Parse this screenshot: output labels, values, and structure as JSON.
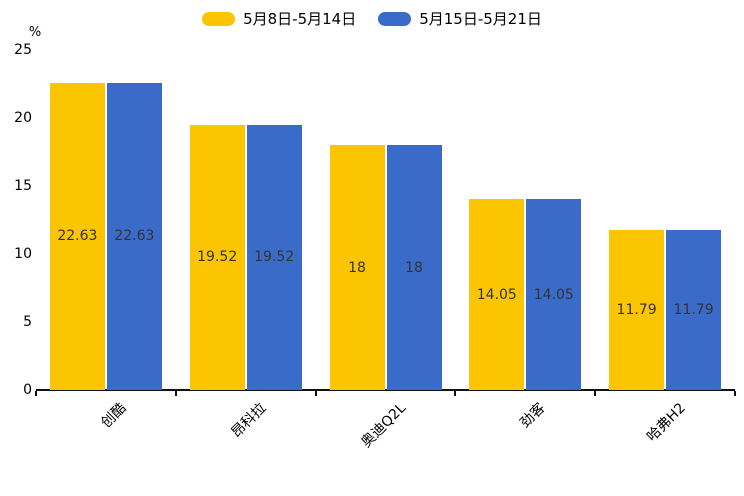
{
  "legend": {
    "items": [
      {
        "label": "5月8日-5月14日"
      },
      {
        "label": "5月15日-5月21日"
      }
    ]
  },
  "chart_data": {
    "type": "bar",
    "title": "",
    "categories": [
      "创酷",
      "昂科拉",
      "奥迪Q2L",
      "劲客",
      "哈弗H2"
    ],
    "series": [
      {
        "name": "5月8日-5月14日",
        "color": "#FCC502",
        "values": [
          22.63,
          19.52,
          18,
          14.05,
          11.79
        ]
      },
      {
        "name": "5月15日-5月21日",
        "color": "#3A6BC9",
        "values": [
          22.63,
          19.52,
          18,
          14.05,
          11.79
        ]
      }
    ],
    "value_label_color": "#333333",
    "ylabel": "%",
    "yticks": [
      0,
      5,
      10,
      15,
      20,
      25
    ],
    "ylim": [
      0,
      25
    ],
    "grid": false,
    "legend_position": "top-center",
    "xtick_rotation": 45,
    "bar_value_labels_shown": true
  }
}
